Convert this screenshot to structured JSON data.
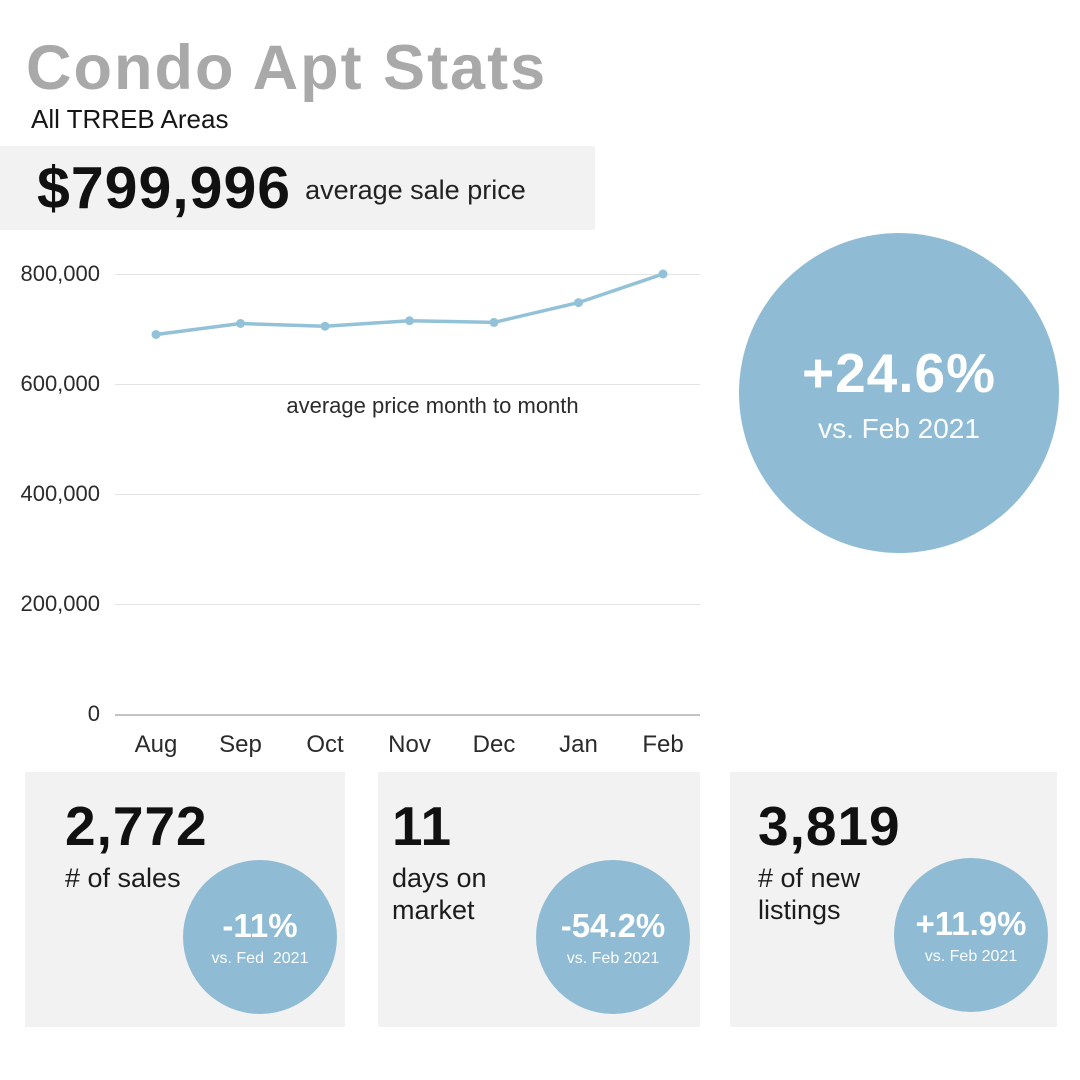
{
  "header": {
    "title": "Condo Apt Stats",
    "subtitle": "All TRREB Areas"
  },
  "price_banner": {
    "value": "$799,996",
    "label": "average sale price"
  },
  "chart_data": {
    "type": "line",
    "title": "average price month to month",
    "categories": [
      "Aug",
      "Sep",
      "Oct",
      "Nov",
      "Dec",
      "Jan",
      "Feb"
    ],
    "values": [
      690000,
      710000,
      705000,
      715000,
      712000,
      748000,
      799996
    ],
    "ylabel": "",
    "xlabel": "",
    "ylim": [
      0,
      800000
    ],
    "yticks": [
      {
        "label": "800,000",
        "value": 800000
      },
      {
        "label": "600,000",
        "value": 600000
      },
      {
        "label": "400,000",
        "value": 400000
      },
      {
        "label": "200,000",
        "value": 200000
      },
      {
        "label": "0",
        "value": 0
      }
    ],
    "grid": true,
    "legend": false,
    "line_color": "#93c2d8",
    "marker": "circle"
  },
  "highlight_circle": {
    "value": "+24.6%",
    "caption": "vs. Feb 2021"
  },
  "stat_cards": [
    {
      "value": "2,772",
      "label": "# of sales",
      "badge_value": "-11%",
      "badge_caption": "vs. Fed  2021"
    },
    {
      "value": "11",
      "label": "days on market",
      "badge_value": "-54.2%",
      "badge_caption": "vs. Feb 2021"
    },
    {
      "value": "3,819",
      "label": "# of new listings",
      "badge_value": "+11.9%",
      "badge_caption": "vs. Feb 2021"
    }
  ],
  "colors": {
    "accent_blue": "#8fbcd4",
    "line_blue": "#93c2d8",
    "card_bg": "#f2f2f2",
    "title_gray": "#a9a9a9",
    "gridline": "#e3e3e3"
  }
}
